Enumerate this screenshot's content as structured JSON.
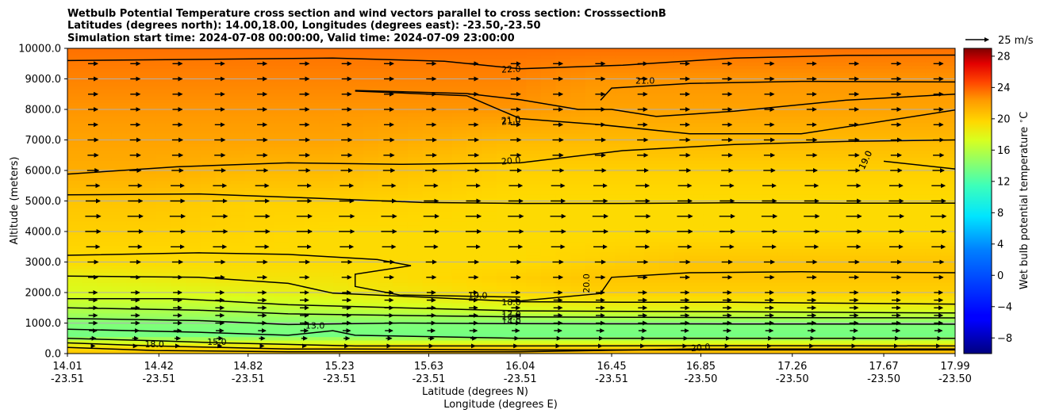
{
  "chart_data": {
    "type": "heatmap",
    "title_lines": [
      "Wetbulb Potential Temperature cross section and wind vectors parallel to cross section: CrosssectionB",
      "Latitudes (degrees north): 14.00,18.00, Longitudes (degrees east): -23.50,-23.50",
      "Simulation start time: 2024-07-08 00:00:00, Valid time: 2024-07-09 23:00:00"
    ],
    "xlabel_lat": "Latitude (degrees N)",
    "xlabel_lon": "Longitude (degrees E)",
    "ylabel": "Altitude (meters)",
    "colorbar_label": "Wet bulb potential temperature $^\\circ$C",
    "quiver_key_label": "25 m/s",
    "xlim": [
      14.01,
      17.99
    ],
    "ylim": [
      0,
      10000
    ],
    "x_ticks": [
      {
        "lat": "14.01",
        "lon": "-23.51",
        "value": 14.01
      },
      {
        "lat": "14.42",
        "lon": "-23.51",
        "value": 14.42
      },
      {
        "lat": "14.82",
        "lon": "-23.51",
        "value": 14.82
      },
      {
        "lat": "15.23",
        "lon": "-23.51",
        "value": 15.23
      },
      {
        "lat": "15.63",
        "lon": "-23.51",
        "value": 15.63
      },
      {
        "lat": "16.04",
        "lon": "-23.51",
        "value": 16.04
      },
      {
        "lat": "16.45",
        "lon": "-23.51",
        "value": 16.45
      },
      {
        "lat": "16.85",
        "lon": "-23.50",
        "value": 16.85
      },
      {
        "lat": "17.26",
        "lon": "-23.50",
        "value": 17.26
      },
      {
        "lat": "17.67",
        "lon": "-23.50",
        "value": 17.67
      },
      {
        "lat": "17.99",
        "lon": "-23.50",
        "value": 17.99
      }
    ],
    "y_ticks": [
      {
        "label": "0.0",
        "value": 0
      },
      {
        "label": "1000.0",
        "value": 1000
      },
      {
        "label": "2000.0",
        "value": 2000
      },
      {
        "label": "3000.0",
        "value": 3000
      },
      {
        "label": "4000.0",
        "value": 4000
      },
      {
        "label": "5000.0",
        "value": 5000
      },
      {
        "label": "6000.0",
        "value": 6000
      },
      {
        "label": "7000.0",
        "value": 7000
      },
      {
        "label": "8000.0",
        "value": 8000
      },
      {
        "label": "9000.0",
        "value": 9000
      },
      {
        "label": "10000.0",
        "value": 10000
      }
    ],
    "colorbar_range": [
      -10,
      29
    ],
    "colorbar_ticks": [
      {
        "label": "−8",
        "value": -8
      },
      {
        "label": "−4",
        "value": -4
      },
      {
        "label": "0",
        "value": 0
      },
      {
        "label": "4",
        "value": 4
      },
      {
        "label": "8",
        "value": 8
      },
      {
        "label": "12",
        "value": 12
      },
      {
        "label": "16",
        "value": 16
      },
      {
        "label": "20",
        "value": 20
      },
      {
        "label": "24",
        "value": 24
      },
      {
        "label": "28",
        "value": 28
      }
    ],
    "contour_levels": [
      {
        "label": "22.0",
        "value": 22,
        "pts": [
          [
            14.01,
            9600
          ],
          [
            14.6,
            9640
          ],
          [
            15.2,
            9680
          ],
          [
            15.7,
            9580
          ],
          [
            16.04,
            9330
          ],
          [
            16.5,
            9450
          ],
          [
            17.0,
            9680
          ],
          [
            17.5,
            9770
          ],
          [
            17.99,
            9780
          ]
        ],
        "lx": 16.0,
        "ly": 9220,
        "rot": -3
      },
      {
        "label": "21.0",
        "value": 21,
        "pts": [
          [
            15.3,
            8620
          ],
          [
            15.8,
            8520
          ],
          [
            16.04,
            8320
          ],
          [
            16.3,
            8000
          ],
          [
            16.45,
            8000
          ],
          [
            16.65,
            7770
          ],
          [
            17.0,
            7940
          ],
          [
            17.5,
            8300
          ],
          [
            17.99,
            8500
          ]
        ],
        "lx": 16.0,
        "ly": 7560,
        "rot": -6
      },
      {
        "label": "21.0",
        "value": 21,
        "pts": [
          [
            15.3,
            8600
          ],
          [
            15.8,
            8450
          ],
          [
            16.04,
            7700
          ],
          [
            16.4,
            7500
          ],
          [
            16.8,
            7200
          ],
          [
            17.3,
            7200
          ],
          [
            17.99,
            7980
          ]
        ],
        "lx": 16.0,
        "ly": 7520,
        "rot": -5
      },
      {
        "label": "21.0",
        "value": 21,
        "pts": [
          [
            16.4,
            8300
          ],
          [
            16.45,
            8700
          ],
          [
            16.8,
            8850
          ],
          [
            17.3,
            8920
          ],
          [
            17.99,
            8900
          ]
        ],
        "lx": 16.6,
        "ly": 8850,
        "rot": 0
      },
      {
        "label": "20.0",
        "value": 20,
        "pts": [
          [
            14.01,
            5880
          ],
          [
            14.5,
            6120
          ],
          [
            15.0,
            6250
          ],
          [
            15.5,
            6200
          ],
          [
            16.04,
            6250
          ],
          [
            16.5,
            6650
          ],
          [
            17.0,
            6850
          ],
          [
            17.5,
            6950
          ],
          [
            17.99,
            7000
          ]
        ],
        "lx": 16.0,
        "ly": 6220,
        "rot": -6
      },
      {
        "label": "19.0",
        "value": 19,
        "pts": [
          [
            14.01,
            5200
          ],
          [
            14.6,
            5230
          ],
          [
            15.1,
            5100
          ],
          [
            15.6,
            4950
          ],
          [
            16.04,
            4920
          ],
          [
            16.5,
            4920
          ],
          [
            17.0,
            4940
          ],
          [
            17.5,
            4930
          ],
          [
            17.99,
            4930
          ]
        ],
        "lx": 17.6,
        "ly": 6300,
        "rot": -65
      },
      {
        "label": "19.0",
        "value": 19,
        "pts": [
          [
            17.67,
            6300
          ],
          [
            17.99,
            6050
          ]
        ],
        "lx": 17.6,
        "ly": 6300,
        "rot": -65
      },
      {
        "label": "19.0",
        "value": 19,
        "pts": [
          [
            14.01,
            3220
          ],
          [
            14.6,
            3300
          ],
          [
            15.0,
            3250
          ],
          [
            15.4,
            3080
          ],
          [
            15.55,
            2880
          ],
          [
            15.3,
            2600
          ],
          [
            15.3,
            2200
          ],
          [
            15.5,
            1920
          ],
          [
            16.04,
            1850
          ]
        ],
        "lx": 15.85,
        "ly": 1800,
        "rot": 0
      },
      {
        "label": "20.0",
        "value": 20,
        "pts": [
          [
            16.0,
            1700
          ],
          [
            16.4,
            1970
          ],
          [
            16.45,
            2500
          ],
          [
            16.8,
            2650
          ],
          [
            17.3,
            2680
          ],
          [
            17.99,
            2650
          ]
        ],
        "lx": 16.35,
        "ly": 2300,
        "rot": -90
      },
      {
        "label": "18.0",
        "value": 18,
        "pts": [
          [
            14.01,
            2540
          ],
          [
            14.6,
            2500
          ],
          [
            15.0,
            2300
          ],
          [
            15.2,
            1980
          ],
          [
            15.6,
            1850
          ],
          [
            16.04,
            1700
          ],
          [
            16.5,
            1680
          ],
          [
            17.0,
            1680
          ],
          [
            17.5,
            1650
          ],
          [
            17.99,
            1620
          ]
        ],
        "lx": 16.0,
        "ly": 1580,
        "rot": 0
      },
      {
        "label": "17.0",
        "value": 17,
        "pts": [
          [
            14.01,
            1800
          ],
          [
            14.5,
            1800
          ],
          [
            15.0,
            1600
          ],
          [
            15.5,
            1500
          ],
          [
            16.04,
            1400
          ],
          [
            17.0,
            1370
          ],
          [
            17.99,
            1330
          ]
        ],
        "lx": 16.0,
        "ly": 1180,
        "rot": 0
      },
      {
        "label": "16.0",
        "value": 16,
        "pts": [
          [
            14.01,
            1500
          ],
          [
            14.6,
            1420
          ],
          [
            15.0,
            1300
          ],
          [
            15.5,
            1250
          ],
          [
            16.04,
            1200
          ],
          [
            17.0,
            1180
          ],
          [
            17.99,
            1170
          ]
        ],
        "lx": 16.0,
        "ly": 1100,
        "rot": 0
      },
      {
        "label": "14.0",
        "value": 14,
        "pts": [
          [
            14.01,
            1150
          ],
          [
            14.6,
            1080
          ],
          [
            15.0,
            950
          ],
          [
            15.5,
            1000
          ],
          [
            16.04,
            980
          ],
          [
            17.0,
            970
          ],
          [
            17.99,
            960
          ]
        ],
        "lx": 16.0,
        "ly": 960,
        "rot": 0
      },
      {
        "label": "13.0",
        "value": 13,
        "pts": [
          [
            14.01,
            800
          ],
          [
            14.6,
            700
          ],
          [
            15.0,
            600
          ],
          [
            15.2,
            750
          ],
          [
            15.3,
            600
          ],
          [
            16.04,
            500
          ],
          [
            17.0,
            500
          ],
          [
            17.99,
            500
          ]
        ],
        "lx": 15.12,
        "ly": 820,
        "rot": 0
      },
      {
        "label": "15.0",
        "value": 15,
        "pts": [
          [
            14.01,
            500
          ],
          [
            14.4,
            420
          ],
          [
            14.7,
            350
          ],
          [
            15.0,
            300
          ],
          [
            15.3,
            250
          ],
          [
            16.04,
            250
          ],
          [
            17.0,
            260
          ],
          [
            17.99,
            250
          ]
        ],
        "lx": 14.68,
        "ly": 290,
        "rot": 0
      },
      {
        "label": "18.0",
        "value": 18,
        "pts": [
          [
            14.01,
            350
          ],
          [
            14.4,
            250
          ],
          [
            14.7,
            200
          ],
          [
            15.0,
            150
          ],
          [
            15.3,
            150
          ],
          [
            16.04,
            120
          ],
          [
            17.0,
            120
          ],
          [
            17.99,
            120
          ]
        ],
        "lx": 14.4,
        "ly": 210,
        "rot": 0
      },
      {
        "label": "20.0",
        "value": 20,
        "pts": [
          [
            14.01,
            200
          ],
          [
            14.4,
            100
          ],
          [
            15.0,
            60
          ],
          [
            16.04,
            60
          ],
          [
            16.8,
            150
          ],
          [
            17.99,
            150
          ]
        ],
        "lx": 16.85,
        "ly": 100,
        "rot": -5
      }
    ],
    "color_field_rows": [
      {
        "alt": 10000,
        "vals": [
          23.5,
          23.5,
          23.5,
          23.5,
          23.5,
          23.5,
          23.5,
          23.5,
          23.5,
          23.5,
          23.5
        ]
      },
      {
        "alt": 9000,
        "vals": [
          23,
          23,
          23,
          23,
          23,
          23,
          22.5,
          22.5,
          22.5,
          22.5,
          22.5
        ]
      },
      {
        "alt": 8000,
        "vals": [
          22.5,
          22.5,
          22.5,
          22.5,
          22.5,
          22.5,
          22,
          22,
          22,
          22,
          22
        ]
      },
      {
        "alt": 7000,
        "vals": [
          22,
          22,
          22,
          22,
          21.5,
          21,
          21,
          21,
          21,
          21,
          21
        ]
      },
      {
        "alt": 6000,
        "vals": [
          21.5,
          21.5,
          21,
          21,
          20.5,
          20,
          20,
          20,
          20,
          20,
          20
        ]
      },
      {
        "alt": 5000,
        "vals": [
          20.5,
          20.5,
          20,
          20,
          19.8,
          19.5,
          19.5,
          19.5,
          19.5,
          19.5,
          19.5
        ]
      },
      {
        "alt": 4000,
        "vals": [
          20,
          20,
          19.8,
          19.5,
          19.5,
          19.5,
          19.5,
          19.5,
          19.5,
          19.5,
          19.5
        ]
      },
      {
        "alt": 3000,
        "vals": [
          19.5,
          19.5,
          19.5,
          19.5,
          19.5,
          19.5,
          20,
          20.5,
          20.5,
          20.5,
          20.5
        ]
      },
      {
        "alt": 2500,
        "vals": [
          18,
          18.5,
          19,
          19,
          19.5,
          20,
          20.5,
          20.5,
          20.5,
          20.5,
          20.5
        ]
      },
      {
        "alt": 2000,
        "vals": [
          17.5,
          17.5,
          18,
          18.5,
          19,
          19.5,
          20,
          20,
          20,
          20,
          20
        ]
      },
      {
        "alt": 1500,
        "vals": [
          16,
          16,
          16,
          16.5,
          17,
          17.5,
          18,
          18,
          18,
          18,
          18
        ]
      },
      {
        "alt": 1000,
        "vals": [
          14,
          14,
          14,
          14,
          14,
          14,
          14,
          14,
          14,
          14,
          14
        ]
      },
      {
        "alt": 600,
        "vals": [
          13.5,
          13.5,
          13.5,
          13.5,
          13.5,
          13.5,
          13.5,
          13.5,
          13.5,
          13.5,
          13.5
        ]
      },
      {
        "alt": 400,
        "vals": [
          17,
          17,
          17,
          17,
          17,
          17,
          17,
          17,
          17,
          17,
          17
        ]
      },
      {
        "alt": 200,
        "vals": [
          19.5,
          19.5,
          19.5,
          19.5,
          20,
          20,
          20,
          20,
          20,
          20,
          20
        ]
      },
      {
        "alt": 0,
        "vals": [
          20.5,
          20.5,
          20.5,
          21,
          21,
          21,
          21,
          21,
          21,
          21,
          21
        ]
      }
    ],
    "wind_vector_levels_m": [
      250,
      500,
      750,
      1000,
      1250,
      1500,
      1750,
      2000,
      2500,
      3000,
      3500,
      4000,
      4500,
      5000,
      5500,
      6000,
      6500,
      7000,
      7500,
      8000,
      8500,
      9000,
      9500
    ],
    "wind_vector_speed_ms": [
      4,
      6,
      8,
      9,
      9,
      9,
      9,
      9,
      10,
      11,
      14,
      16,
      16,
      15,
      14,
      12,
      11,
      11,
      10,
      10,
      10,
      10,
      10
    ],
    "wind_vector_columns": 21,
    "grid": true
  }
}
